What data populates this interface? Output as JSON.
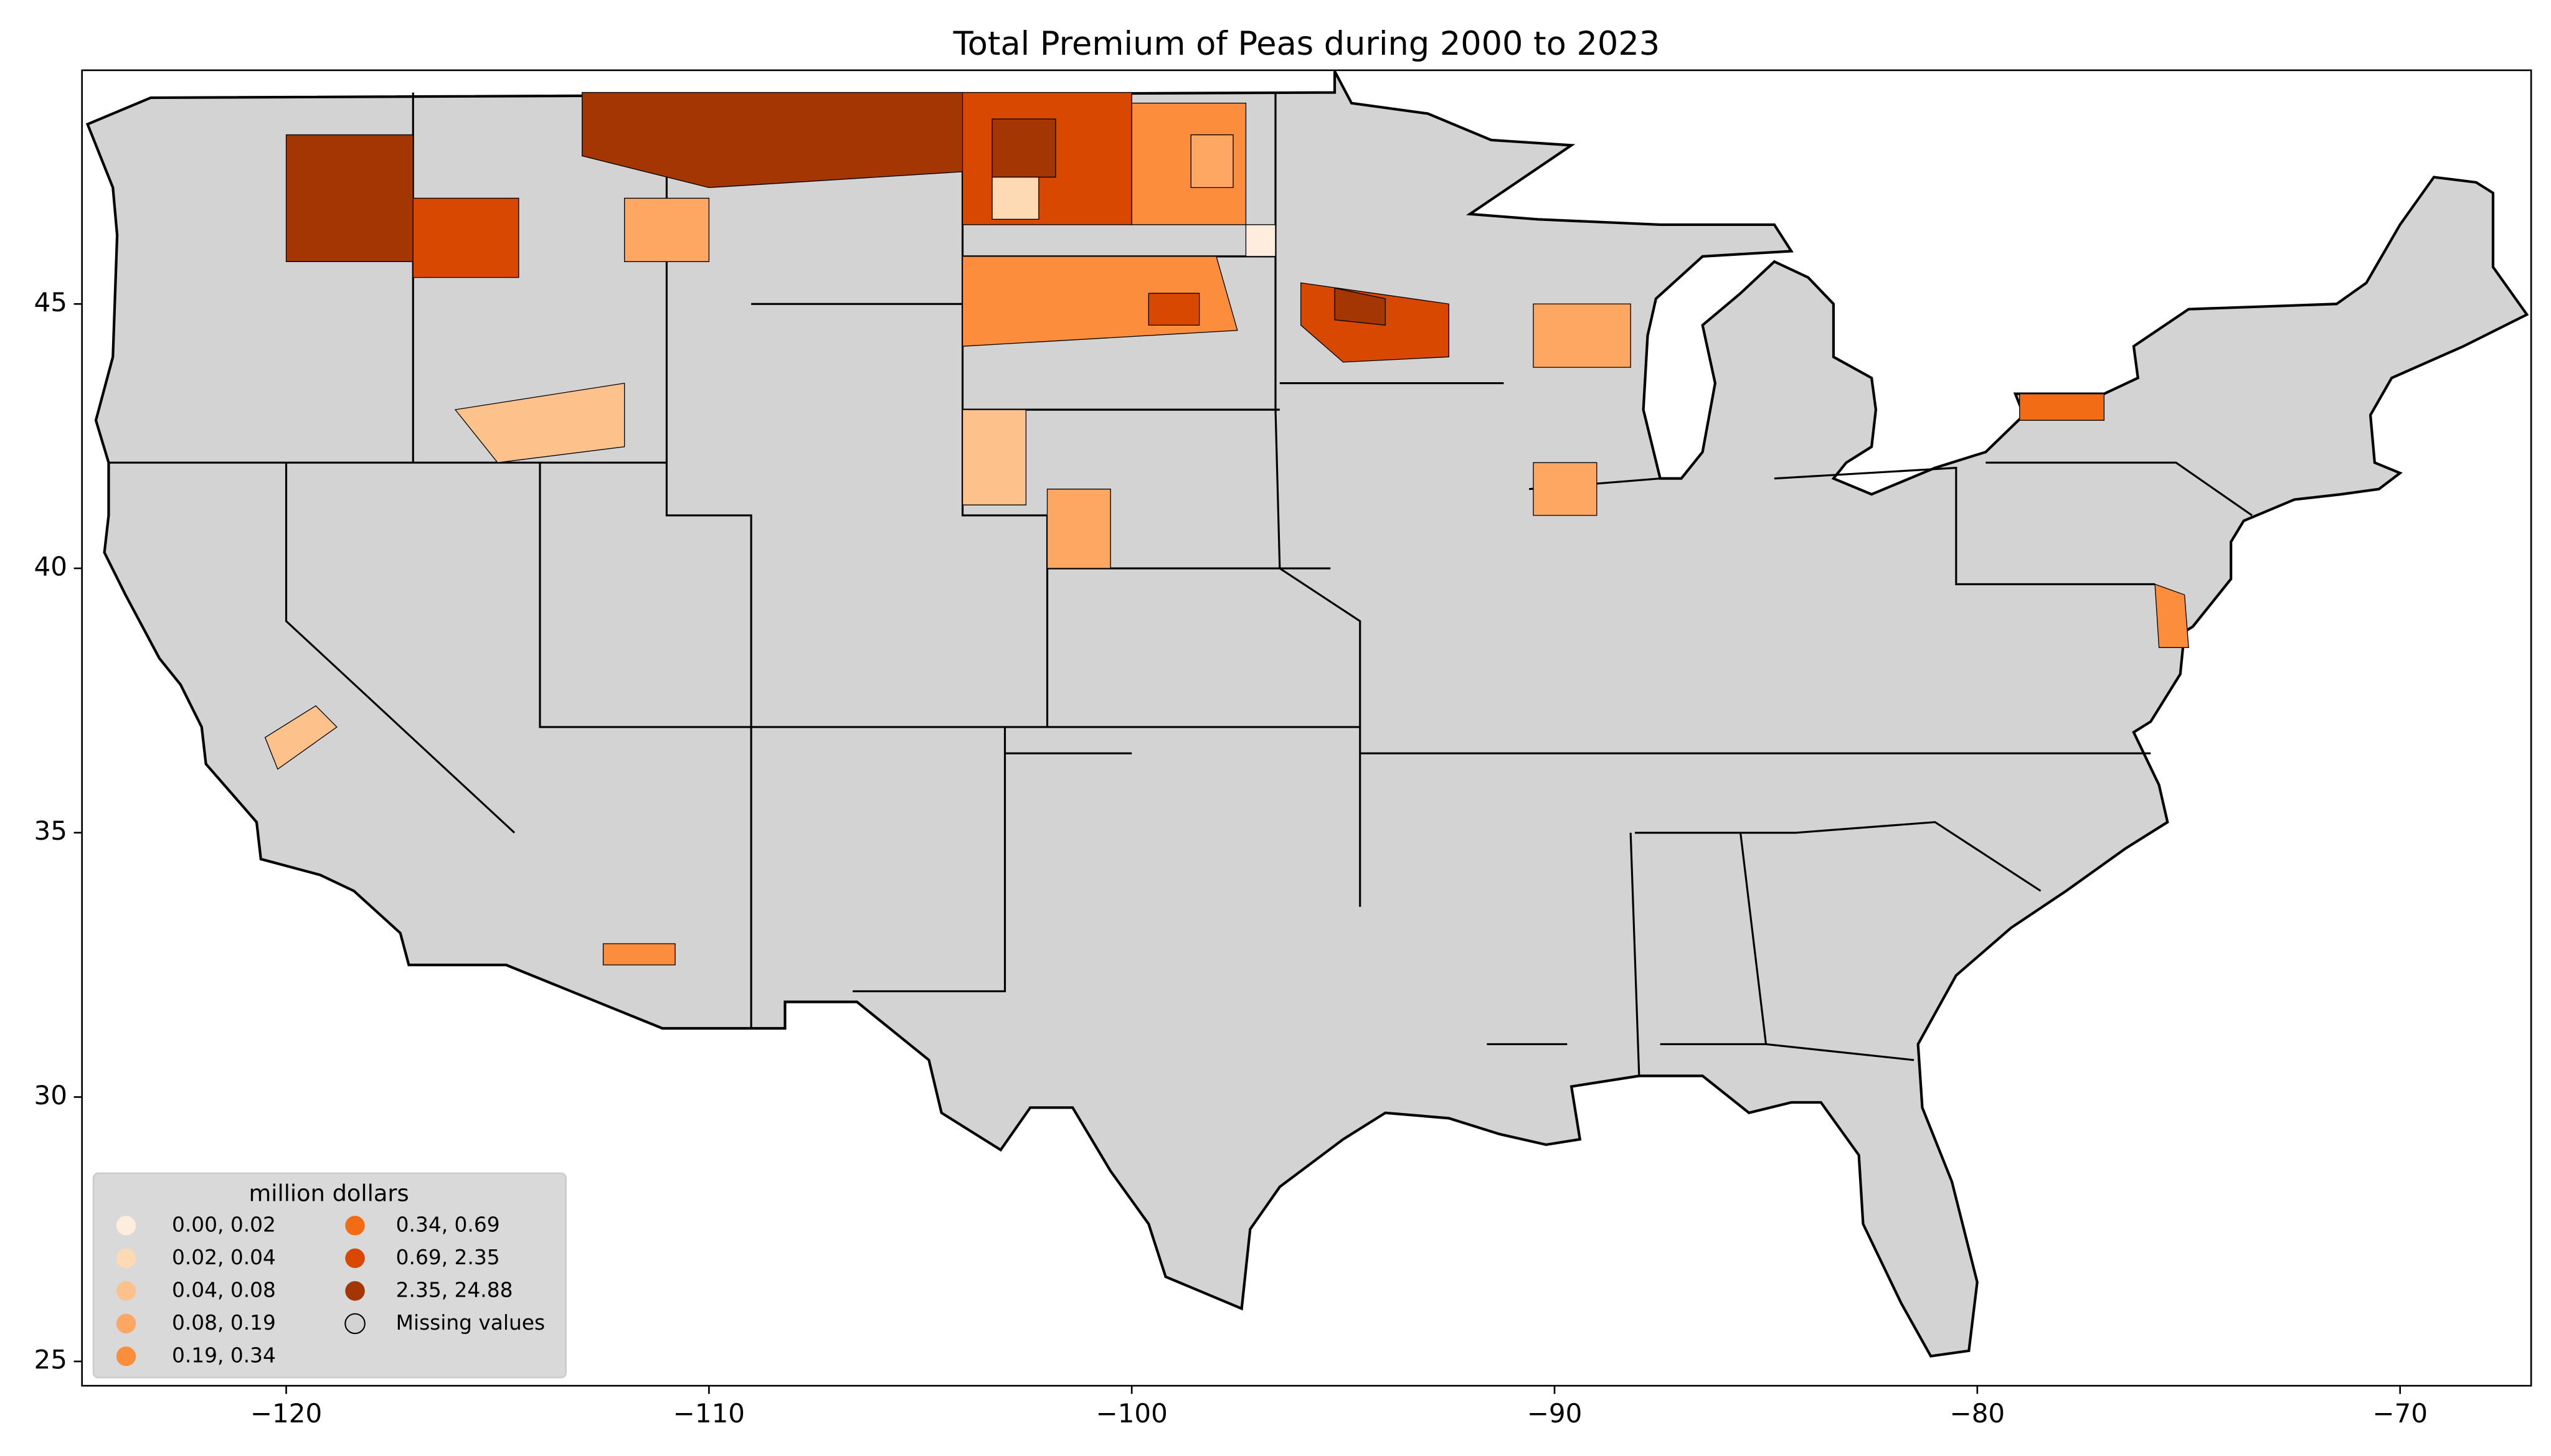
{
  "chart_data": {
    "type": "choropleth",
    "title": "Total  Premium of Peas during 2000 to 2023",
    "xlim": [
      -124.83,
      -66.9
    ],
    "ylim": [
      24.54,
      49.42
    ],
    "xticks": [
      {
        "value": -120,
        "label": "−120"
      },
      {
        "value": -110,
        "label": "−110"
      },
      {
        "value": -100,
        "label": "−100"
      },
      {
        "value": -90,
        "label": "−90"
      },
      {
        "value": -80,
        "label": "−80"
      },
      {
        "value": -70,
        "label": "−70"
      }
    ],
    "yticks": [
      25,
      30,
      35,
      40,
      45
    ],
    "legend": {
      "title": "million dollars",
      "position": "lower left",
      "items": [
        {
          "label": "0.00,  0.02",
          "color": "#feeddc"
        },
        {
          "label": "0.02,  0.04",
          "color": "#fdd9b4"
        },
        {
          "label": "0.04,  0.08",
          "color": "#fdc28c"
        },
        {
          "label": "0.08,  0.19",
          "color": "#fda762"
        },
        {
          "label": "0.19,  0.34",
          "color": "#fb8d3d"
        },
        {
          "label": "0.34,  0.69",
          "color": "#f26b15"
        },
        {
          "label": "0.69,  2.35",
          "color": "#d84801"
        },
        {
          "label": "2.35, 24.88",
          "color": "#a33603"
        },
        {
          "label": "Missing values",
          "color": "#d3d3d3"
        }
      ]
    }
  }
}
